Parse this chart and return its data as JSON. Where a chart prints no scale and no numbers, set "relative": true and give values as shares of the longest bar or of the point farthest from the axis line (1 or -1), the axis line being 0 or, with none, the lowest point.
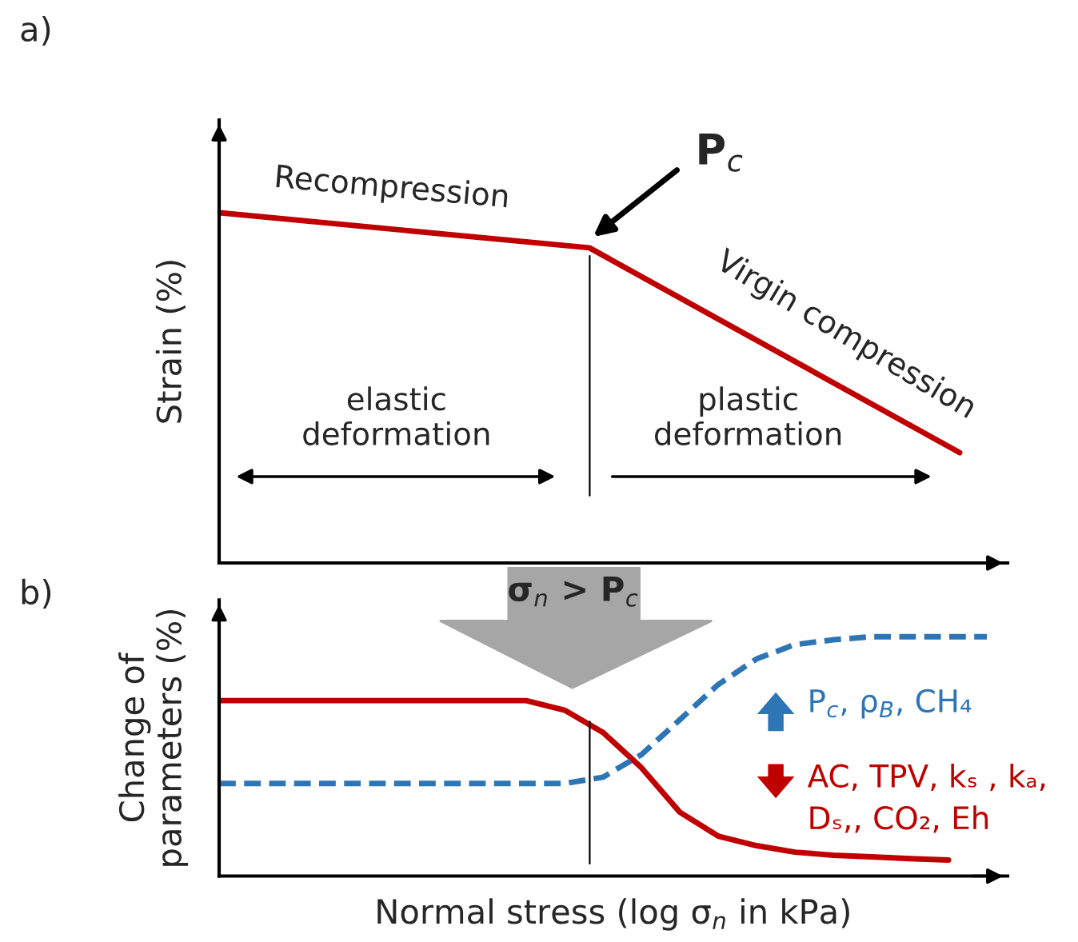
{
  "chart_data": [
    {
      "type": "line",
      "relative": true,
      "ylabel": "Strain (%)",
      "tick_labels": false,
      "categories": [
        null,
        null,
        null
      ],
      "series": [
        {
          "color": "#c00000",
          "line_style": "solid",
          "values": [
            1,
            0.9,
            0.315
          ]
        }
      ],
      "annotations": [
        "a)",
        "P$_{c}$",
        "Recompression",
        "Virgin compression",
        "elastic\ndeformation",
        "plastic\ndeformation"
      ]
    },
    {
      "type": "line",
      "relative": true,
      "ylabel": "Change of\nparameters (%)",
      "xlabel": "Normal stress (log σ$_{n}$ in kPa)",
      "tick_labels": false,
      "categories": [
        null,
        null,
        null,
        null,
        null,
        null,
        null,
        null,
        null,
        null,
        null,
        null,
        null,
        null,
        null,
        null,
        null,
        null,
        null,
        null,
        null
      ],
      "series": [
        {
          "color": "#c00000",
          "line_style": "solid",
          "values": [
            0.733,
            0.733,
            0.733,
            0.733,
            0.733,
            0.733,
            0.733,
            0.733,
            0.733,
            0.693,
            0.6,
            0.453,
            0.267,
            0.167,
            0.127,
            0.1,
            0.087,
            0.08,
            0.073,
            0.067,
            null
          ]
        },
        {
          "color": "#2e75b6",
          "line_style": "dashed",
          "values": [
            0.387,
            0.387,
            0.387,
            0.387,
            0.387,
            0.387,
            0.387,
            0.387,
            0.387,
            0.387,
            0.413,
            0.507,
            0.653,
            0.8,
            0.907,
            0.967,
            0.987,
            1,
            1,
            1,
            1
          ]
        }
      ],
      "annotations": [
        "b)",
        "σ$_{n}$ > P$_{c}$",
        "P$_{c}$, ρ$_{B}$, CH₄",
        "AC, TPV, kₛ , kₐ,\nDₛ,, CO₂, Eh"
      ]
    }
  ]
}
